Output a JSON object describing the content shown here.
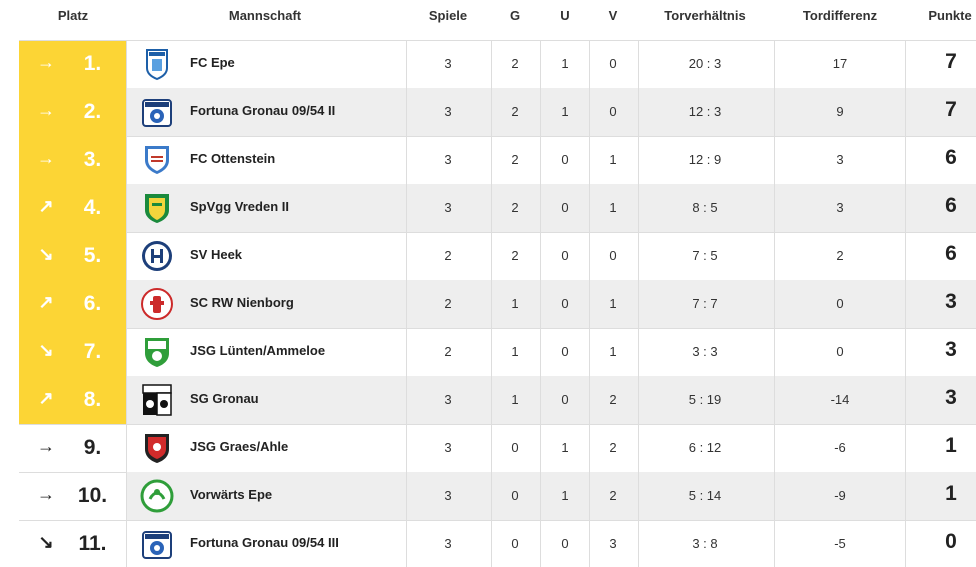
{
  "columns": {
    "platz": "Platz",
    "mannschaft": "Mannschaft",
    "spiele": "Spiele",
    "g": "G",
    "u": "U",
    "v": "V",
    "torverhaeltnis": "Torverhältnis",
    "tordifferenz": "Tordifferenz",
    "punkte": "Punkte"
  },
  "colors": {
    "highlight": "#fcd535",
    "row_shade": "#eeeeee",
    "grid": "#dddddd"
  },
  "rows": [
    {
      "trend": "→",
      "rank": "1.",
      "team": "FC Epe",
      "spiele": "3",
      "g": "2",
      "u": "1",
      "v": "0",
      "tore": "20 : 3",
      "diff": "17",
      "punkte": "7",
      "logo": "fc-epe-crest",
      "highlight": true
    },
    {
      "trend": "→",
      "rank": "2.",
      "team": "Fortuna Gronau 09/54 II",
      "spiele": "3",
      "g": "2",
      "u": "1",
      "v": "0",
      "tore": "12 : 3",
      "diff": "9",
      "punkte": "7",
      "logo": "fortuna-gronau-crest",
      "highlight": true
    },
    {
      "trend": "→",
      "rank": "3.",
      "team": "FC Ottenstein",
      "spiele": "3",
      "g": "2",
      "u": "0",
      "v": "1",
      "tore": "12 : 9",
      "diff": "3",
      "punkte": "6",
      "logo": "fc-ottenstein-crest",
      "highlight": true
    },
    {
      "trend": "↗",
      "rank": "4.",
      "team": "SpVgg Vreden II",
      "spiele": "3",
      "g": "2",
      "u": "0",
      "v": "1",
      "tore": "8 : 5",
      "diff": "3",
      "punkte": "6",
      "logo": "spvgg-vreden-crest",
      "highlight": true
    },
    {
      "trend": "↘",
      "rank": "5.",
      "team": "SV Heek",
      "spiele": "2",
      "g": "2",
      "u": "0",
      "v": "0",
      "tore": "7 : 5",
      "diff": "2",
      "punkte": "6",
      "logo": "sv-heek-crest",
      "highlight": true
    },
    {
      "trend": "↗",
      "rank": "6.",
      "team": "SC RW Nienborg",
      "spiele": "2",
      "g": "1",
      "u": "0",
      "v": "1",
      "tore": "7 : 7",
      "diff": "0",
      "punkte": "3",
      "logo": "sc-rw-nienborg-crest",
      "highlight": true
    },
    {
      "trend": "↘",
      "rank": "7.",
      "team": "JSG Lünten/Ammeloe",
      "spiele": "2",
      "g": "1",
      "u": "0",
      "v": "1",
      "tore": "3 : 3",
      "diff": "0",
      "punkte": "3",
      "logo": "jsg-luenten-crest",
      "highlight": true
    },
    {
      "trend": "↗",
      "rank": "8.",
      "team": "SG Gronau",
      "spiele": "3",
      "g": "1",
      "u": "0",
      "v": "2",
      "tore": "5 : 19",
      "diff": "-14",
      "punkte": "3",
      "logo": "sg-gronau-crest",
      "highlight": true
    },
    {
      "trend": "→",
      "rank": "9.",
      "team": "JSG Graes/Ahle",
      "spiele": "3",
      "g": "0",
      "u": "1",
      "v": "2",
      "tore": "6 : 12",
      "diff": "-6",
      "punkte": "1",
      "logo": "jsg-graes-crest",
      "highlight": false
    },
    {
      "trend": "→",
      "rank": "10.",
      "team": "Vorwärts Epe",
      "spiele": "3",
      "g": "0",
      "u": "1",
      "v": "2",
      "tore": "5 : 14",
      "diff": "-9",
      "punkte": "1",
      "logo": "vorwaerts-epe-crest",
      "highlight": false
    },
    {
      "trend": "↘",
      "rank": "11.",
      "team": "Fortuna Gronau 09/54 III",
      "spiele": "3",
      "g": "0",
      "u": "0",
      "v": "3",
      "tore": "3 : 8",
      "diff": "-5",
      "punkte": "0",
      "logo": "fortuna-gronau-crest",
      "highlight": false
    }
  ]
}
